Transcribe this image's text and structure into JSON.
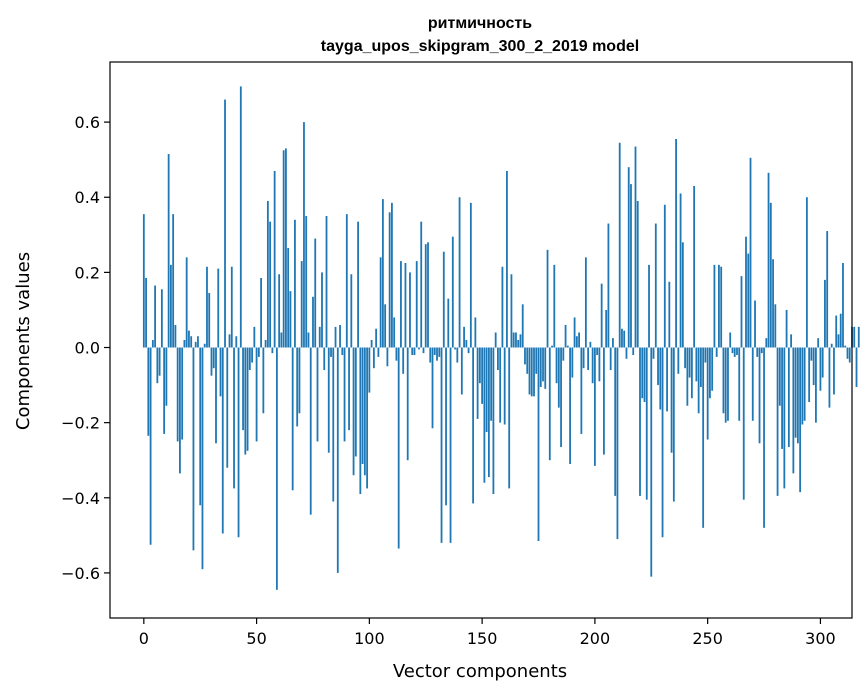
{
  "chart_data": {
    "type": "bar",
    "title": "ритмичность",
    "subtitle": "tayga_upos_skipgram_300_2_2019 model",
    "xlabel": "Vector components",
    "ylabel": "Components values",
    "xlim": [
      -15,
      314
    ],
    "ylim": [
      -0.72,
      0.76
    ],
    "xticks": [
      0,
      50,
      100,
      150,
      200,
      250,
      300
    ],
    "yticks": [
      -0.6,
      -0.4,
      -0.2,
      0.0,
      0.2,
      0.4,
      0.6
    ],
    "xtick_labels": [
      "0",
      "50",
      "100",
      "150",
      "200",
      "250",
      "300"
    ],
    "ytick_labels": [
      "−0.6",
      "−0.4",
      "−0.2",
      "0.0",
      "0.2",
      "0.4",
      "0.6"
    ],
    "bar_color": "#1f77b4",
    "grid": false,
    "values": [
      0.355,
      0.185,
      -0.235,
      -0.525,
      0.02,
      0.165,
      -0.095,
      -0.075,
      0.155,
      -0.23,
      -0.155,
      0.515,
      0.22,
      0.355,
      0.06,
      -0.25,
      -0.335,
      -0.245,
      0.02,
      0.24,
      0.045,
      0.03,
      -0.54,
      0.015,
      0.03,
      -0.42,
      -0.59,
      0.01,
      0.215,
      0.145,
      -0.075,
      -0.055,
      -0.255,
      0.21,
      -0.13,
      -0.495,
      0.66,
      -0.32,
      0.035,
      0.215,
      -0.375,
      0.03,
      -0.505,
      0.695,
      -0.22,
      -0.285,
      -0.275,
      -0.06,
      -0.04,
      0.055,
      -0.25,
      -0.025,
      0.185,
      -0.175,
      0.02,
      0.39,
      0.335,
      -0.015,
      0.47,
      -0.645,
      0.195,
      0.04,
      0.525,
      0.53,
      0.265,
      0.15,
      -0.38,
      0.34,
      -0.21,
      -0.175,
      0.23,
      0.6,
      0.35,
      0.04,
      -0.445,
      0.135,
      0.29,
      -0.25,
      0.055,
      0.2,
      -0.06,
      0.35,
      -0.28,
      -0.025,
      -0.41,
      0.055,
      -0.6,
      0.06,
      -0.02,
      -0.25,
      0.355,
      -0.22,
      0.195,
      -0.34,
      -0.29,
      0.335,
      -0.39,
      -0.31,
      -0.34,
      -0.375,
      -0.12,
      0.02,
      -0.055,
      0.05,
      -0.025,
      0.24,
      0.395,
      0.115,
      -0.05,
      0.36,
      0.385,
      0.08,
      -0.035,
      -0.535,
      0.23,
      -0.07,
      0.225,
      -0.3,
      0.2,
      -0.02,
      -0.02,
      0.23,
      -0.005,
      0.335,
      -0.015,
      0.275,
      0.28,
      -0.04,
      -0.215,
      -0.02,
      -0.035,
      -0.025,
      -0.52,
      0.255,
      -0.42,
      0.13,
      -0.52,
      0.295,
      -0.005,
      -0.04,
      0.4,
      -0.125,
      0.055,
      0.02,
      -0.015,
      0.385,
      -0.415,
      0.08,
      -0.19,
      -0.095,
      -0.15,
      -0.36,
      -0.225,
      -0.345,
      -0.195,
      -0.39,
      0.04,
      -0.06,
      -0.2,
      0.215,
      -0.205,
      0.47,
      -0.375,
      0.195,
      0.04,
      0.04,
      0.02,
      0.035,
      0.115,
      -0.045,
      -0.07,
      -0.125,
      -0.13,
      -0.13,
      -0.07,
      -0.515,
      -0.105,
      -0.09,
      -0.11,
      0.26,
      -0.3,
      0.005,
      0.22,
      -0.095,
      -0.16,
      -0.265,
      -0.035,
      0.06,
      0.005,
      -0.31,
      -0.08,
      0.08,
      0.03,
      0.04,
      -0.23,
      -0.055,
      0.24,
      -0.06,
      0.015,
      -0.095,
      -0.315,
      -0.02,
      -0.09,
      0.17,
      -0.285,
      0.1,
      0.33,
      -0.06,
      0.025,
      -0.395,
      -0.51,
      0.545,
      0.05,
      0.045,
      -0.03,
      0.48,
      0.435,
      -0.02,
      0.535,
      0.39,
      -0.395,
      -0.135,
      -0.145,
      -0.405,
      0.22,
      -0.61,
      -0.03,
      0.33,
      -0.1,
      -0.165,
      -0.505,
      0.38,
      -0.17,
      0.175,
      -0.28,
      -0.41,
      0.555,
      -0.07,
      0.41,
      0.28,
      -0.055,
      -0.155,
      -0.08,
      -0.135,
      0.43,
      -0.09,
      -0.175,
      -0.105,
      -0.48,
      -0.04,
      -0.245,
      -0.135,
      -0.115,
      0.22,
      -0.025,
      0.22,
      0.215,
      -0.175,
      -0.2,
      -0.195,
      0.04,
      -0.015,
      -0.025,
      -0.02,
      -0.195,
      0.19,
      -0.405,
      0.295,
      0.25,
      0.505,
      -0.195,
      0.125,
      -0.025,
      -0.255,
      -0.015,
      -0.48,
      0.025,
      0.465,
      0.385,
      0.235,
      0.115,
      -0.395,
      -0.155,
      -0.27,
      -0.375,
      0.1,
      -0.265,
      0.035,
      -0.335,
      -0.24,
      -0.255,
      -0.385,
      -0.205,
      -0.195,
      0.4,
      -0.145,
      -0.035,
      -0.1,
      -0.2,
      0.025,
      -0.115,
      -0.08,
      0.18,
      0.31,
      -0.16,
      0.01,
      -0.125,
      0.085,
      0.035,
      0.09,
      0.225,
      0.005,
      -0.03,
      -0.04,
      0.055,
      0.055,
      -0.105,
      0.055
    ]
  }
}
